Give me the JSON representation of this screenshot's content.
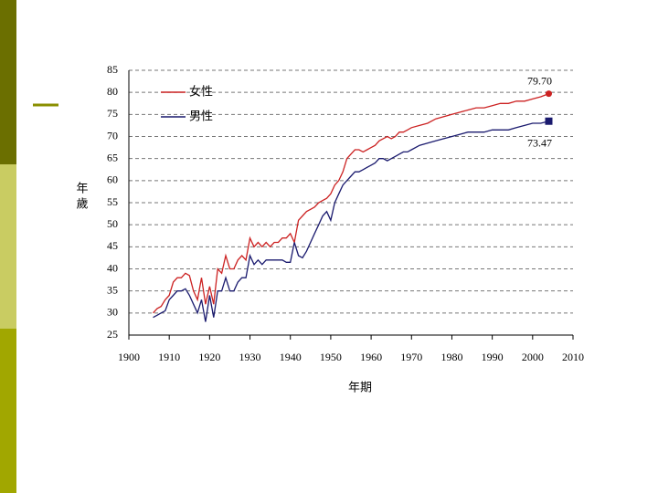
{
  "chart_data": {
    "type": "line",
    "xlabel": "年期",
    "ylabel": "年歲",
    "x": [
      1906,
      1907,
      1908,
      1909,
      1910,
      1911,
      1912,
      1913,
      1914,
      1915,
      1916,
      1917,
      1918,
      1919,
      1920,
      1921,
      1922,
      1923,
      1924,
      1925,
      1926,
      1927,
      1928,
      1929,
      1930,
      1931,
      1932,
      1933,
      1934,
      1935,
      1936,
      1937,
      1938,
      1939,
      1940,
      1941,
      1942,
      1943,
      1944,
      1945,
      1946,
      1947,
      1948,
      1949,
      1950,
      1951,
      1952,
      1953,
      1954,
      1955,
      1956,
      1957,
      1958,
      1959,
      1960,
      1961,
      1962,
      1963,
      1964,
      1965,
      1966,
      1967,
      1968,
      1969,
      1970,
      1972,
      1974,
      1976,
      1978,
      1980,
      1982,
      1984,
      1986,
      1988,
      1990,
      1992,
      1994,
      1996,
      1998,
      2000,
      2002,
      2004
    ],
    "series": [
      {
        "name": "女性",
        "color": "#cc2222",
        "values": [
          30,
          31,
          31.5,
          33,
          34,
          37,
          38,
          38,
          39,
          38.5,
          35,
          33,
          38,
          32,
          36,
          32,
          40,
          39,
          43,
          40,
          40,
          42,
          43,
          42,
          47,
          45,
          46,
          45,
          46,
          45,
          46,
          46,
          47,
          47,
          48,
          46,
          51,
          52,
          53,
          53.5,
          54,
          55,
          55.5,
          56,
          57,
          59,
          60,
          62,
          65,
          66,
          67,
          67,
          66.5,
          67,
          67.5,
          68,
          69,
          69.5,
          70,
          69.5,
          70,
          71,
          71,
          71.5,
          72,
          72.5,
          73,
          74,
          74.5,
          75,
          75.5,
          76,
          76.5,
          76.5,
          77,
          77.5,
          77.5,
          78,
          78,
          78.5,
          79,
          79.7
        ]
      },
      {
        "name": "男性",
        "color": "#1a1a6e",
        "values": [
          29,
          29.5,
          30,
          30.5,
          33,
          34,
          35,
          35,
          35.5,
          34,
          32,
          30,
          33,
          28,
          34,
          29,
          35,
          35,
          38,
          35,
          35,
          37,
          38,
          38,
          43,
          41,
          42,
          41,
          42,
          42,
          42,
          42,
          42,
          41.5,
          41.5,
          46,
          43,
          42.5,
          44,
          46,
          48,
          50,
          52,
          53,
          51,
          55,
          57,
          59,
          60,
          61,
          62,
          62,
          62.5,
          63,
          63.5,
          64,
          65,
          65,
          64.5,
          65,
          65.5,
          66,
          66.5,
          66.5,
          67,
          68,
          68.5,
          69,
          69.5,
          70,
          70.5,
          71,
          71,
          71,
          71.5,
          71.5,
          71.5,
          72,
          72.5,
          73,
          73,
          73.47
        ]
      }
    ],
    "annotations": [
      {
        "label": "79.70",
        "x": 2004,
        "y": 79.7,
        "color": "#cc2222",
        "marker": "circle"
      },
      {
        "label": "73.47",
        "x": 2004,
        "y": 73.47,
        "color": "#1a1a6e",
        "marker": "square"
      }
    ],
    "xlim": [
      1900,
      2010
    ],
    "xticks": [
      1900,
      1910,
      1920,
      1930,
      1940,
      1950,
      1960,
      1970,
      1980,
      1990,
      2000,
      2010
    ],
    "ylim": [
      25,
      85
    ],
    "yticks": [
      25,
      30,
      35,
      40,
      45,
      50,
      55,
      60,
      65,
      70,
      75,
      80,
      85
    ],
    "grid": true,
    "legend": "upper left"
  }
}
